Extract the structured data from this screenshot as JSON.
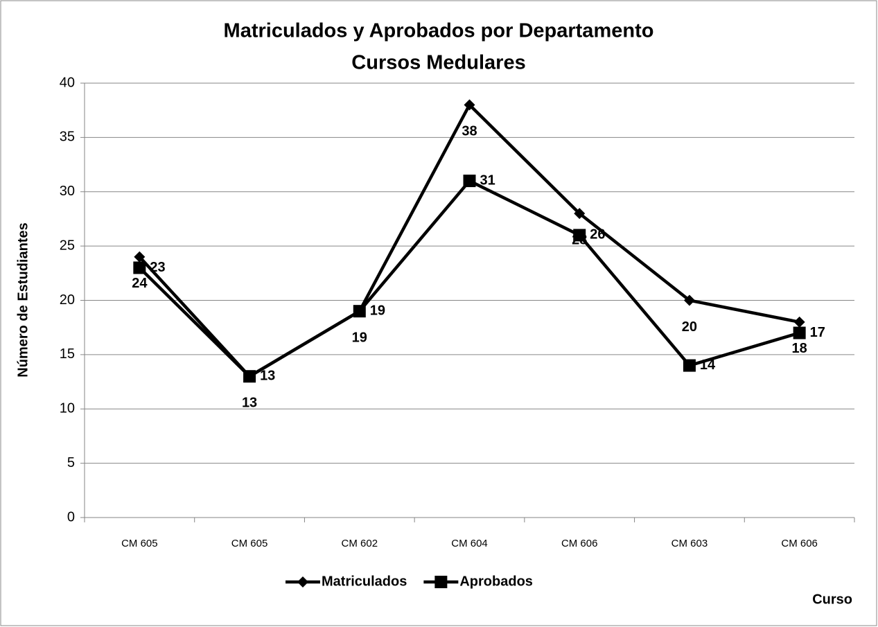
{
  "chart_data": {
    "type": "line",
    "title": [
      "Matriculados y Aprobados por Departamento",
      "Cursos Medulares"
    ],
    "y_label": "Número de Estudiantes",
    "x_label": "Curso",
    "categories": [
      "CM 605",
      "CM 605",
      "CM 602",
      "CM 604",
      "CM 606",
      "CM 603",
      "CM 606"
    ],
    "series": [
      {
        "name": "Matriculados",
        "color": "#000000",
        "marker": "diamond",
        "values": [
          24,
          13,
          19,
          38,
          28,
          20,
          18
        ]
      },
      {
        "name": "Aprobados",
        "color": "#000000",
        "marker": "square",
        "values": [
          23,
          13,
          19,
          31,
          26,
          14,
          17
        ]
      }
    ],
    "ylim": [
      0,
      40
    ],
    "yticks": [
      0,
      5,
      10,
      15,
      20,
      25,
      30,
      35,
      40
    ],
    "grid": true,
    "legend": "bottom"
  }
}
